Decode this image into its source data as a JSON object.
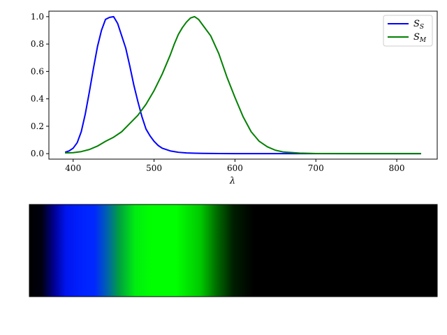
{
  "chart_data": [
    {
      "type": "line",
      "xlabel": "λ",
      "ylabel": "",
      "xlim": [
        370,
        850
      ],
      "ylim": [
        -0.04,
        1.04
      ],
      "xticks": [
        400,
        500,
        600,
        700,
        800
      ],
      "yticks": [
        0.0,
        0.2,
        0.4,
        0.6,
        0.8,
        1.0
      ],
      "xtick_labels": [
        "400",
        "500",
        "600",
        "700",
        "800"
      ],
      "ytick_labels": [
        "0.0",
        "0.2",
        "0.4",
        "0.6",
        "0.8",
        "1.0"
      ],
      "grid": false,
      "legend_position": "top-right",
      "series": [
        {
          "name": "S",
          "name_subscript": "S",
          "color": "#0000ff",
          "x": [
            390,
            395,
            400,
            405,
            410,
            415,
            420,
            425,
            430,
            435,
            440,
            445,
            450,
            455,
            460,
            465,
            470,
            475,
            480,
            485,
            490,
            495,
            500,
            505,
            510,
            520,
            530,
            540,
            550,
            560,
            580,
            600,
            650,
            700,
            750,
            800,
            830
          ],
          "y": [
            0.01,
            0.02,
            0.04,
            0.08,
            0.16,
            0.29,
            0.45,
            0.62,
            0.78,
            0.9,
            0.98,
            0.995,
            1.0,
            0.95,
            0.86,
            0.77,
            0.64,
            0.5,
            0.38,
            0.27,
            0.18,
            0.13,
            0.09,
            0.06,
            0.04,
            0.02,
            0.01,
            0.005,
            0.003,
            0.002,
            0.001,
            0.0,
            0.0,
            0.0,
            0.0,
            0.0,
            0.0
          ]
        },
        {
          "name": "S",
          "name_subscript": "M",
          "color": "#008000",
          "x": [
            390,
            400,
            410,
            420,
            430,
            440,
            450,
            460,
            470,
            480,
            490,
            500,
            510,
            520,
            525,
            530,
            535,
            540,
            545,
            550,
            555,
            560,
            570,
            580,
            590,
            600,
            610,
            620,
            630,
            640,
            650,
            660,
            680,
            700,
            750,
            800,
            830
          ],
          "y": [
            0.005,
            0.007,
            0.015,
            0.03,
            0.055,
            0.09,
            0.12,
            0.16,
            0.22,
            0.28,
            0.36,
            0.46,
            0.58,
            0.72,
            0.8,
            0.87,
            0.92,
            0.96,
            0.99,
            1.0,
            0.98,
            0.94,
            0.86,
            0.73,
            0.56,
            0.41,
            0.27,
            0.16,
            0.09,
            0.05,
            0.025,
            0.012,
            0.004,
            0.001,
            0.0,
            0.0,
            0.0
          ]
        }
      ]
    },
    {
      "type": "heatmap",
      "description_colors": [
        "#000000",
        "#0022ff",
        "#00ff00",
        "#000000"
      ],
      "gradient": [
        {
          "at": 0.0,
          "color": "#000000"
        },
        {
          "at": 0.03,
          "color": "#000010"
        },
        {
          "at": 0.06,
          "color": "#000090"
        },
        {
          "at": 0.09,
          "color": "#0015f0"
        },
        {
          "at": 0.13,
          "color": "#0022ff"
        },
        {
          "at": 0.16,
          "color": "#0028ff"
        },
        {
          "at": 0.19,
          "color": "#0060b0"
        },
        {
          "at": 0.22,
          "color": "#00a040"
        },
        {
          "at": 0.26,
          "color": "#00ee10"
        },
        {
          "at": 0.3,
          "color": "#00ff00"
        },
        {
          "at": 0.36,
          "color": "#00ff00"
        },
        {
          "at": 0.42,
          "color": "#00c800"
        },
        {
          "at": 0.46,
          "color": "#006a00"
        },
        {
          "at": 0.5,
          "color": "#001e00"
        },
        {
          "at": 0.55,
          "color": "#000000"
        },
        {
          "at": 1.0,
          "color": "#000000"
        }
      ]
    }
  ]
}
